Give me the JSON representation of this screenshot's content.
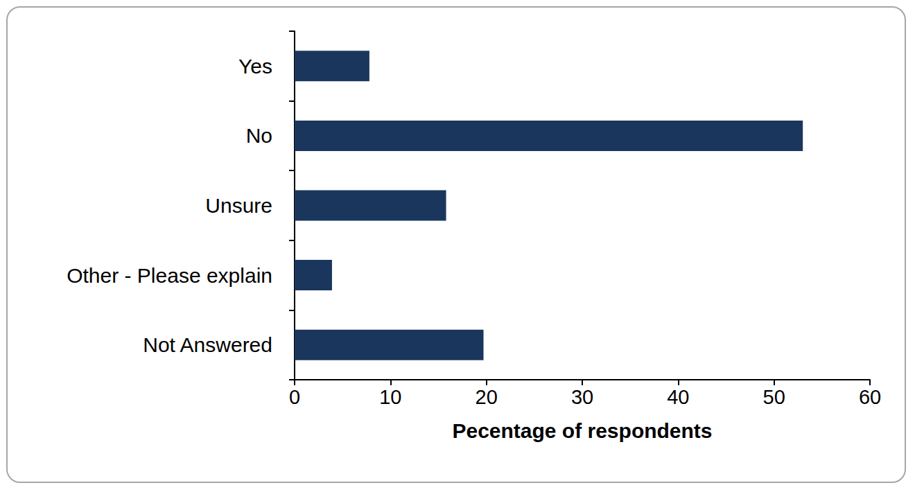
{
  "chart_data": {
    "type": "bar",
    "orientation": "horizontal",
    "categories": [
      "Yes",
      "No",
      "Unsure",
      "Other - Please explain",
      "Not Answered"
    ],
    "values": [
      7.8,
      53,
      15.8,
      3.9,
      19.7
    ],
    "color": "#1b365d",
    "x_label": "Pecentage of respondents",
    "xlim": [
      0,
      60
    ],
    "xticks": [
      0,
      10,
      20,
      30,
      40,
      50,
      60
    ],
    "grid": false
  }
}
